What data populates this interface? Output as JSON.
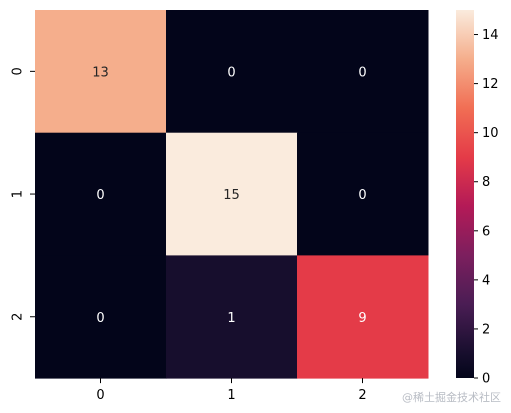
{
  "chart_data": {
    "type": "heatmap",
    "x_categories": [
      "0",
      "1",
      "2"
    ],
    "y_categories": [
      "0",
      "1",
      "2"
    ],
    "values": [
      [
        13,
        0,
        0
      ],
      [
        0,
        15,
        0
      ],
      [
        0,
        1,
        9
      ]
    ],
    "annotations": true,
    "colormap": "rocket",
    "colorbar": {
      "range": [
        0,
        15
      ],
      "ticks": [
        0,
        2,
        4,
        6,
        8,
        10,
        12,
        14
      ]
    },
    "title": "",
    "xlabel": "",
    "ylabel": ""
  },
  "watermark": "@稀土掘金技术社区"
}
